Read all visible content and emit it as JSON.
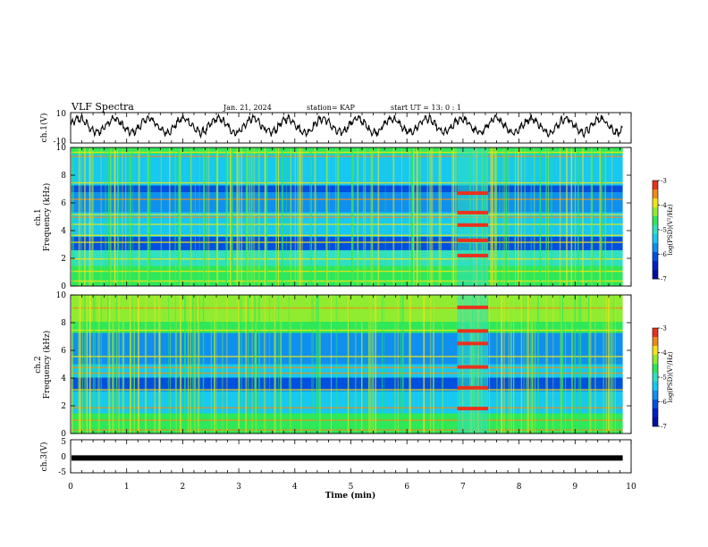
{
  "header": {
    "title": "VLF Spectra",
    "date": "Jan. 21, 2024",
    "station": "station= KAP",
    "start": "start  UT =  13: 0  : 1"
  },
  "chart_data": [
    {
      "type": "line",
      "panel": "ch1-waveform",
      "ylabel": "ch.1(V)",
      "ylim": [
        -10,
        10
      ],
      "yticks": [
        "10",
        "-10"
      ],
      "x_range_min": [
        0,
        9.85
      ],
      "description_series": "oscillating waveform between about -5 and 8 V"
    },
    {
      "type": "heatmap",
      "panel": "ch1-spectrogram",
      "ylabel": "ch.1\nFrequency (kHz)",
      "ylim": [
        0,
        10
      ],
      "yticks": [
        "0",
        "2",
        "4",
        "6",
        "8",
        "10"
      ],
      "colorbar": {
        "label": "log(PSD)(V²/Hz)",
        "range": [
          -7,
          -3
        ],
        "ticks": [
          "-3",
          "-4",
          "-5",
          "-6",
          "-7"
        ]
      },
      "bursts_min": [
        6.9,
        7.45
      ],
      "colors": {
        "bg": "#17c8f0",
        "low": "#0020c8",
        "mid": "#2ee85a",
        "high": "#f2e419",
        "peak": "#e8321e"
      }
    },
    {
      "type": "heatmap",
      "panel": "ch2-spectrogram",
      "ylabel": "ch.2\nFrequency (kHz)",
      "ylim": [
        0,
        10
      ],
      "yticks": [
        "0",
        "2",
        "4",
        "6",
        "8",
        "10"
      ],
      "colorbar": {
        "label": "log(PSD)(V²/Hz)",
        "range": [
          -7,
          -3
        ],
        "ticks": [
          "-3",
          "-4",
          "-5",
          "-6",
          "-7"
        ]
      },
      "bursts_min": [
        6.9,
        7.45
      ]
    },
    {
      "type": "line",
      "panel": "ch3-waveform",
      "ylabel": "ch.3(V)",
      "ylim": [
        -5,
        5
      ],
      "yticks": [
        "5",
        "0",
        "-5"
      ],
      "values_constant_approx": -0.5
    }
  ],
  "xaxis": {
    "label": "Time  (min)",
    "ticks": [
      "0",
      "1",
      "2",
      "3",
      "4",
      "5",
      "6",
      "7",
      "8",
      "9",
      "10"
    ],
    "range": [
      0,
      10
    ]
  }
}
